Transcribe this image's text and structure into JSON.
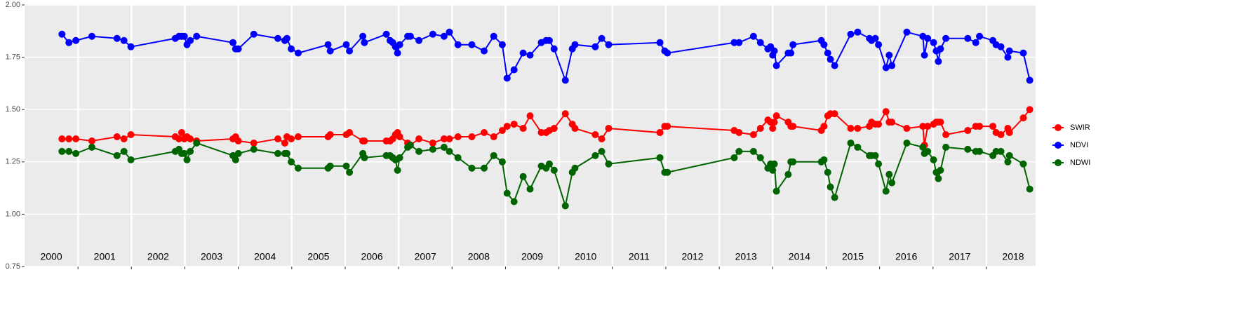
{
  "chart_data": {
    "type": "line",
    "x": [
      2000.7,
      2000.83,
      2000.96,
      2001.26,
      2001.73,
      2001.86,
      2001.99,
      2002.82,
      2002.89,
      2002.94,
      2002.99,
      2003.04,
      2003.1,
      2003.22,
      2003.9,
      2003.95,
      2004.0,
      2004.29,
      2004.74,
      2004.87,
      2004.91,
      2004.99,
      2005.12,
      2005.68,
      2005.72,
      2006.02,
      2006.08,
      2006.33,
      2006.36,
      2006.77,
      2006.84,
      2006.89,
      2006.94,
      2006.98,
      2007.02,
      2007.17,
      2007.22,
      2007.38,
      2007.64,
      2007.85,
      2007.95,
      2008.11,
      2008.37,
      2008.6,
      2008.78,
      2008.94,
      2009.03,
      2009.16,
      2009.33,
      2009.46,
      2009.67,
      2009.76,
      2009.82,
      2009.91,
      2010.12,
      2010.25,
      2010.3,
      2010.68,
      2010.8,
      2010.93,
      2011.89,
      2011.98,
      2012.03,
      2013.28,
      2013.37,
      2013.64,
      2013.77,
      2013.91,
      2013.96,
      2014.0,
      2014.03,
      2014.07,
      2014.29,
      2014.34,
      2014.38,
      2014.91,
      2014.96,
      2015.03,
      2015.08,
      2015.16,
      2015.46,
      2015.59,
      2015.81,
      2015.85,
      2015.92,
      2015.98,
      2016.12,
      2016.18,
      2016.23,
      2016.51,
      2016.81,
      2016.84,
      2016.9,
      2017.01,
      2017.06,
      2017.1,
      2017.14,
      2017.24,
      2017.65,
      2017.8,
      2017.87,
      2018.12,
      2018.18,
      2018.27,
      2018.4,
      2018.43,
      2018.69,
      2018.81
    ],
    "series": [
      {
        "name": "SWIR",
        "color": "#ff0000",
        "values": [
          1.36,
          1.36,
          1.36,
          1.35,
          1.37,
          1.36,
          1.38,
          1.37,
          1.36,
          1.39,
          1.36,
          1.37,
          1.36,
          1.35,
          1.36,
          1.37,
          1.35,
          1.34,
          1.36,
          1.34,
          1.37,
          1.36,
          1.37,
          1.37,
          1.38,
          1.38,
          1.39,
          1.35,
          1.35,
          1.35,
          1.35,
          1.36,
          1.38,
          1.39,
          1.37,
          1.34,
          1.33,
          1.36,
          1.34,
          1.36,
          1.36,
          1.37,
          1.37,
          1.39,
          1.37,
          1.4,
          1.42,
          1.43,
          1.41,
          1.47,
          1.39,
          1.39,
          1.4,
          1.41,
          1.48,
          1.43,
          1.41,
          1.38,
          1.36,
          1.41,
          1.39,
          1.42,
          1.42,
          1.4,
          1.39,
          1.38,
          1.41,
          1.45,
          1.44,
          1.41,
          1.44,
          1.47,
          1.44,
          1.42,
          1.42,
          1.4,
          1.42,
          1.47,
          1.48,
          1.48,
          1.41,
          1.41,
          1.42,
          1.44,
          1.43,
          1.43,
          1.49,
          1.44,
          1.44,
          1.41,
          1.42,
          1.33,
          1.42,
          1.43,
          1.44,
          1.44,
          1.44,
          1.38,
          1.4,
          1.42,
          1.42,
          1.42,
          1.39,
          1.38,
          1.41,
          1.39,
          1.46,
          1.5
        ]
      },
      {
        "name": "NDVI",
        "color": "#0000ff",
        "values": [
          1.86,
          1.82,
          1.83,
          1.85,
          1.84,
          1.83,
          1.8,
          1.84,
          1.85,
          1.85,
          1.85,
          1.81,
          1.83,
          1.85,
          1.82,
          1.79,
          1.79,
          1.86,
          1.84,
          1.83,
          1.84,
          1.79,
          1.77,
          1.81,
          1.78,
          1.81,
          1.78,
          1.85,
          1.82,
          1.86,
          1.83,
          1.82,
          1.8,
          1.77,
          1.81,
          1.85,
          1.85,
          1.83,
          1.86,
          1.85,
          1.87,
          1.81,
          1.81,
          1.78,
          1.85,
          1.81,
          1.65,
          1.69,
          1.77,
          1.76,
          1.82,
          1.83,
          1.83,
          1.79,
          1.64,
          1.79,
          1.81,
          1.8,
          1.84,
          1.81,
          1.82,
          1.78,
          1.77,
          1.82,
          1.82,
          1.85,
          1.82,
          1.79,
          1.8,
          1.76,
          1.78,
          1.71,
          1.77,
          1.77,
          1.81,
          1.83,
          1.81,
          1.77,
          1.74,
          1.71,
          1.86,
          1.87,
          1.84,
          1.83,
          1.84,
          1.81,
          1.7,
          1.76,
          1.71,
          1.87,
          1.85,
          1.76,
          1.84,
          1.82,
          1.78,
          1.73,
          1.79,
          1.84,
          1.84,
          1.82,
          1.85,
          1.83,
          1.81,
          1.8,
          1.75,
          1.78,
          1.77,
          1.64
        ]
      },
      {
        "name": "NDWI",
        "color": "#006400",
        "values": [
          1.3,
          1.3,
          1.29,
          1.32,
          1.28,
          1.3,
          1.26,
          1.3,
          1.31,
          1.29,
          1.29,
          1.26,
          1.3,
          1.34,
          1.28,
          1.26,
          1.29,
          1.31,
          1.29,
          1.29,
          1.29,
          1.25,
          1.22,
          1.22,
          1.23,
          1.23,
          1.2,
          1.29,
          1.27,
          1.28,
          1.28,
          1.27,
          1.26,
          1.21,
          1.27,
          1.32,
          1.33,
          1.3,
          1.31,
          1.32,
          1.3,
          1.27,
          1.22,
          1.22,
          1.28,
          1.25,
          1.1,
          1.06,
          1.18,
          1.12,
          1.23,
          1.22,
          1.24,
          1.21,
          1.04,
          1.2,
          1.22,
          1.28,
          1.3,
          1.24,
          1.27,
          1.2,
          1.2,
          1.27,
          1.3,
          1.3,
          1.27,
          1.22,
          1.24,
          1.21,
          1.24,
          1.11,
          1.19,
          1.25,
          1.25,
          1.25,
          1.26,
          1.2,
          1.13,
          1.08,
          1.34,
          1.32,
          1.28,
          1.28,
          1.28,
          1.24,
          1.11,
          1.19,
          1.15,
          1.34,
          1.32,
          1.29,
          1.3,
          1.26,
          1.2,
          1.17,
          1.21,
          1.32,
          1.31,
          1.3,
          1.3,
          1.28,
          1.3,
          1.3,
          1.25,
          1.28,
          1.24,
          1.12
        ]
      }
    ],
    "legend_order": [
      "SWIR",
      "NDVI",
      "NDWI"
    ],
    "xlim": [
      2000,
      2018.92
    ],
    "xticks": [
      {
        "value": 2000.5,
        "label": "2000"
      },
      {
        "value": 2001.5,
        "label": "2001"
      },
      {
        "value": 2002.5,
        "label": "2002"
      },
      {
        "value": 2003.5,
        "label": "2003"
      },
      {
        "value": 2004.5,
        "label": "2004"
      },
      {
        "value": 2005.5,
        "label": "2005"
      },
      {
        "value": 2006.5,
        "label": "2006"
      },
      {
        "value": 2007.5,
        "label": "2007"
      },
      {
        "value": 2008.5,
        "label": "2008"
      },
      {
        "value": 2009.5,
        "label": "2009"
      },
      {
        "value": 2010.5,
        "label": "2010"
      },
      {
        "value": 2011.5,
        "label": "2011"
      },
      {
        "value": 2012.5,
        "label": "2012"
      },
      {
        "value": 2013.5,
        "label": "2013"
      },
      {
        "value": 2014.5,
        "label": "2014"
      },
      {
        "value": 2015.5,
        "label": "2015"
      },
      {
        "value": 2016.5,
        "label": "2016"
      },
      {
        "value": 2017.5,
        "label": "2017"
      },
      {
        "value": 2018.5,
        "label": "2018"
      }
    ],
    "xgrid": [
      2001,
      2002,
      2003,
      2004,
      2005,
      2006,
      2007,
      2008,
      2009,
      2010,
      2011,
      2012,
      2013,
      2014,
      2015,
      2016,
      2017,
      2018
    ],
    "ylim": [
      0.75,
      2.0
    ],
    "yticks": [
      {
        "value": 0.75,
        "label": "0.75"
      },
      {
        "value": 1.0,
        "label": "1.00"
      },
      {
        "value": 1.25,
        "label": "1.25"
      },
      {
        "value": 1.5,
        "label": "1.50"
      },
      {
        "value": 1.75,
        "label": "1.75"
      },
      {
        "value": 2.0,
        "label": "2.00"
      }
    ],
    "grid": true,
    "legend": "right"
  }
}
